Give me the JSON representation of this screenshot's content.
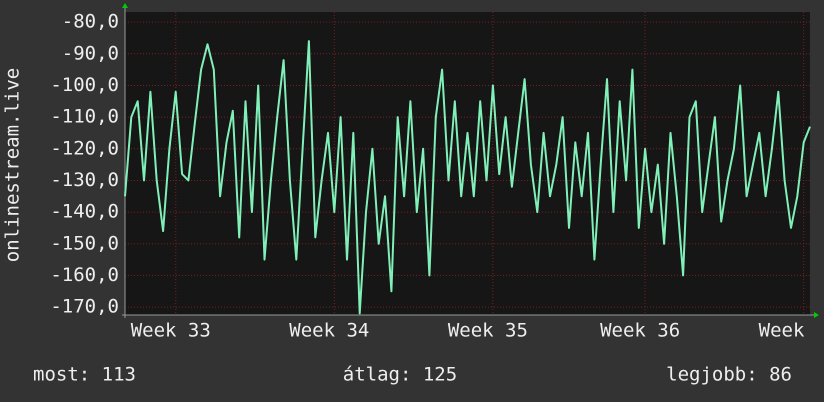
{
  "chart_data": {
    "type": "line",
    "ylabel": "onlinestream.live",
    "series": [
      {
        "name": "onlinestream.live",
        "color": "#80f0b8",
        "values": [
          -135,
          -110,
          -105,
          -130,
          -102,
          -130,
          -146,
          -120,
          -102,
          -128,
          -130,
          -112,
          -95,
          -87,
          -95,
          -135,
          -118,
          -108,
          -148,
          -105,
          -140,
          -100,
          -155,
          -130,
          -110,
          -92,
          -130,
          -155,
          -120,
          -86,
          -148,
          -130,
          -115,
          -140,
          -110,
          -155,
          -115,
          -172,
          -140,
          -120,
          -150,
          -135,
          -165,
          -110,
          -135,
          -105,
          -140,
          -120,
          -160,
          -110,
          -95,
          -130,
          -105,
          -135,
          -115,
          -135,
          -105,
          -130,
          -100,
          -128,
          -110,
          -132,
          -115,
          -98,
          -125,
          -140,
          -115,
          -135,
          -125,
          -110,
          -145,
          -118,
          -135,
          -115,
          -155,
          -125,
          -98,
          -140,
          -105,
          -130,
          -95,
          -145,
          -120,
          -140,
          -125,
          -150,
          -115,
          -135,
          -160,
          -110,
          -105,
          -140,
          -125,
          -110,
          -143,
          -130,
          -120,
          -100,
          -135,
          -125,
          -115,
          -135,
          -120,
          -102,
          -130,
          -145,
          -135,
          -118,
          -113
        ]
      }
    ],
    "xlim": [
      0,
      108
    ],
    "xticks": [
      {
        "value": 8,
        "label": "Week 33"
      },
      {
        "value": 33,
        "label": "Week 34"
      },
      {
        "value": 58,
        "label": "Week 35"
      },
      {
        "value": 82,
        "label": "Week 36"
      },
      {
        "value": 107,
        "label": "Week"
      }
    ],
    "ylim": [
      -172.5,
      -76.8
    ],
    "yticks": [
      {
        "value": -80,
        "label": "-80,0"
      },
      {
        "value": -90,
        "label": "-90,0"
      },
      {
        "value": -100,
        "label": "-100,0"
      },
      {
        "value": -110,
        "label": "-110,0"
      },
      {
        "value": -120,
        "label": "-120,0"
      },
      {
        "value": -130,
        "label": "-130,0"
      },
      {
        "value": -140,
        "label": "-140,0"
      },
      {
        "value": -150,
        "label": "-150,0"
      },
      {
        "value": -160,
        "label": "-160,0"
      },
      {
        "value": -170,
        "label": "-170,0"
      }
    ],
    "grid": true,
    "footer": [
      "most: 113",
      "átlag: 125",
      "legjobb: 86"
    ]
  }
}
